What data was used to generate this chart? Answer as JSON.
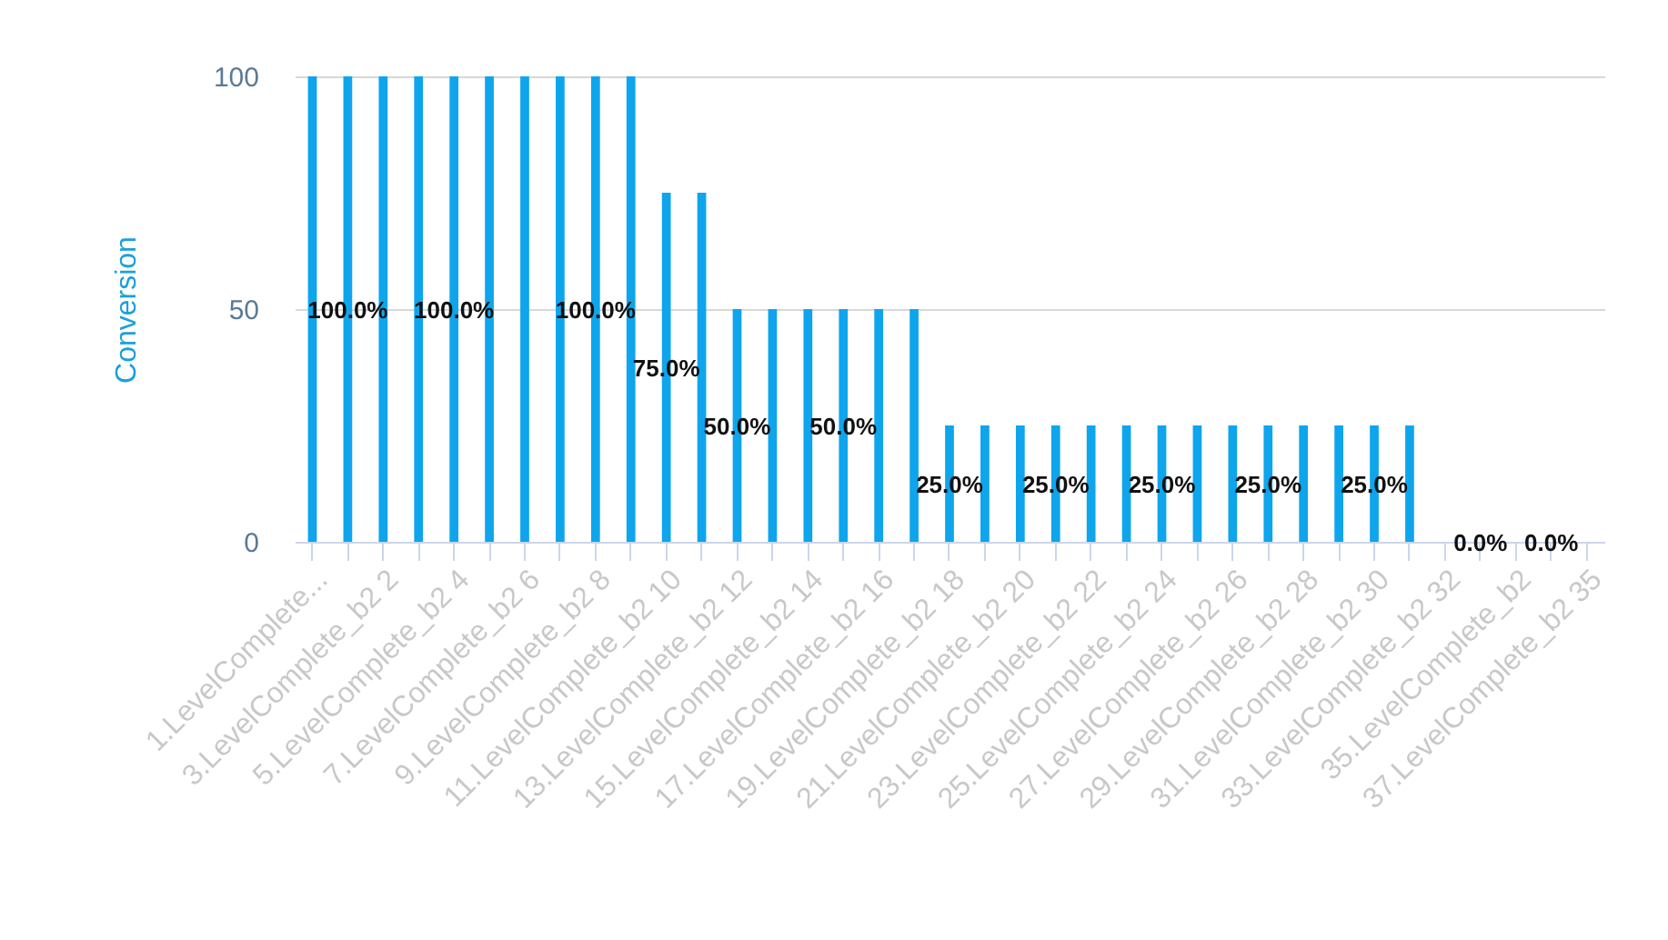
{
  "chart_data": {
    "type": "bar",
    "ylabel": "Conversion",
    "categories": [
      "1.LevelComplete...",
      null,
      "3.LevelComplete_b2 2",
      null,
      "5.LevelComplete_b2 4",
      null,
      "7.LevelComplete_b2 6",
      null,
      "9.LevelComplete_b2 8",
      null,
      "11.LevelComplete_b2 10",
      null,
      "13.LevelComplete_b2 12",
      null,
      "15.LevelComplete_b2 14",
      null,
      "17.LevelComplete_b2 16",
      null,
      "19.LevelComplete_b2 18",
      null,
      "21.LevelComplete_b2 20",
      null,
      "23.LevelComplete_b2 22",
      null,
      "25.LevelComplete_b2 24",
      null,
      "27.LevelComplete_b2 26",
      null,
      "29.LevelComplete_b2 28",
      null,
      "31.LevelComplete_b2 30",
      null,
      "33.LevelComplete_b2 32",
      null,
      "35.LevelComplete_b2",
      null,
      "37.LevelComplete_b2 35"
    ],
    "values": [
      100,
      100,
      100,
      100,
      100,
      100,
      100,
      100,
      100,
      100,
      75,
      75,
      50,
      50,
      50,
      50,
      50,
      50,
      25,
      25,
      25,
      25,
      25,
      25,
      25,
      25,
      25,
      25,
      25,
      25,
      25,
      25,
      0,
      0,
      0,
      0,
      0
    ],
    "value_labels": [
      null,
      "100.0%",
      null,
      null,
      "100.0%",
      null,
      null,
      null,
      "100.0%",
      null,
      "75.0%",
      null,
      "50.0%",
      null,
      null,
      "50.0%",
      null,
      null,
      "25.0%",
      null,
      null,
      "25.0%",
      null,
      null,
      "25.0%",
      null,
      null,
      "25.0%",
      null,
      null,
      "25.0%",
      null,
      null,
      "0.0%",
      null,
      "0.0%",
      null
    ],
    "color": "#0ea5ec",
    "ylim": [
      0,
      100
    ],
    "yticks": [
      0,
      50,
      100
    ],
    "grid": "y"
  }
}
